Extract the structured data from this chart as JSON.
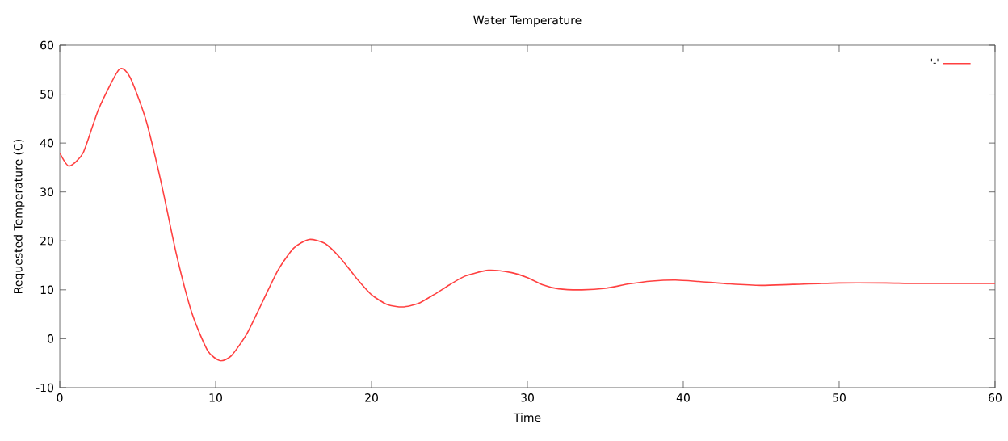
{
  "chart_data": {
    "type": "line",
    "title": "Water Temperature",
    "xlabel": "Time",
    "ylabel": "Requested Temperature (C)",
    "xlim": [
      0,
      60
    ],
    "ylim": [
      -10,
      60
    ],
    "xticks": [
      0,
      10,
      20,
      30,
      40,
      50,
      60
    ],
    "yticks": [
      -10,
      0,
      10,
      20,
      30,
      40,
      50,
      60
    ],
    "legend": "top right",
    "grid": false,
    "series": [
      {
        "name": "'-'",
        "color": "#ff4040",
        "x": [
          0,
          0.6,
          1.5,
          2.5,
          3.8,
          4.5,
          5.5,
          6.5,
          7.5,
          8.5,
          9.5,
          10.3,
          11,
          12,
          13,
          14,
          15,
          16,
          17,
          18,
          19,
          20,
          21,
          22,
          23,
          24,
          25,
          26,
          27.5,
          29,
          30,
          31,
          32,
          33.5,
          35,
          36.5,
          38,
          39.5,
          41,
          43,
          45,
          47,
          50,
          53,
          55,
          60
        ],
        "values": [
          38,
          35.3,
          38,
          47,
          55,
          53.5,
          45,
          32,
          17,
          5,
          -2.5,
          -4.5,
          -3.5,
          1,
          7.5,
          14,
          18.5,
          20.3,
          19.5,
          16.5,
          12.5,
          9,
          7,
          6.5,
          7.2,
          9,
          11,
          12.8,
          14,
          13.5,
          12.5,
          11,
          10.2,
          10,
          10.3,
          11.2,
          11.8,
          12,
          11.7,
          11.2,
          10.9,
          11.1,
          11.4,
          11.4,
          11.3,
          11.3
        ]
      }
    ]
  }
}
